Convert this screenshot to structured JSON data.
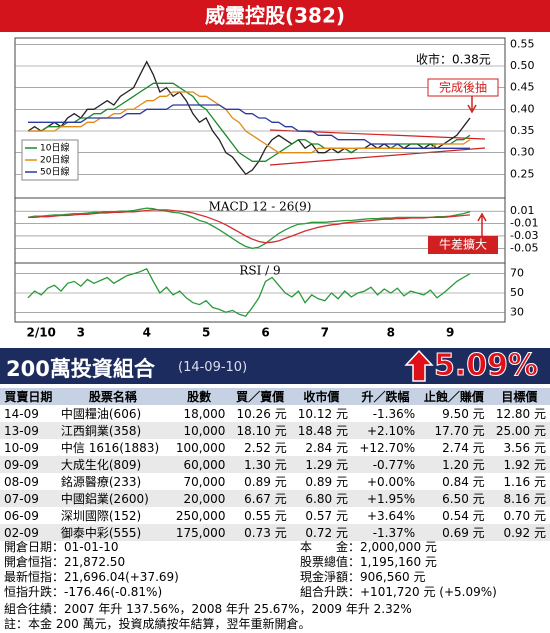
{
  "header": {
    "title": "威靈控股(382)"
  },
  "chart_data": [
    {
      "type": "line",
      "annotations": [
        "收市：0.38元",
        "完成後抽"
      ],
      "ylim": [
        0.2,
        0.56
      ],
      "yticks": [
        0.25,
        {
          "value": 0.3,
          "label": "0.30"
        },
        0.35,
        {
          "value": 0.4,
          "label": "0.40"
        },
        0.45,
        {
          "value": 0.5,
          "label": "0.50"
        },
        0.55
      ],
      "grid": true,
      "legend": "lower-left",
      "series": [
        {
          "color": "#222222",
          "values": [
            0.35,
            0.36,
            0.35,
            0.36,
            0.37,
            0.36,
            0.38,
            0.39,
            0.38,
            0.4,
            0.4,
            0.41,
            0.42,
            0.41,
            0.43,
            0.44,
            0.45,
            0.48,
            0.51,
            0.48,
            0.44,
            0.45,
            0.43,
            0.44,
            0.42,
            0.39,
            0.37,
            0.38,
            0.35,
            0.33,
            0.3,
            0.29,
            0.27,
            0.25,
            0.26,
            0.28,
            0.31,
            0.33,
            0.34,
            0.33,
            0.32,
            0.33,
            0.31,
            0.32,
            0.3,
            0.3,
            0.31,
            0.3,
            0.31,
            0.3,
            0.31,
            0.31,
            0.32,
            0.31,
            0.32,
            0.31,
            0.32,
            0.31,
            0.32,
            0.32,
            0.31,
            0.32,
            0.31,
            0.32,
            0.33,
            0.34,
            0.36,
            0.38
          ]
        },
        {
          "name": "10日線",
          "color": "#1a8a2a",
          "values": [
            0.35,
            0.35,
            0.35,
            0.36,
            0.36,
            0.36,
            0.37,
            0.37,
            0.38,
            0.38,
            0.39,
            0.39,
            0.4,
            0.4,
            0.41,
            0.42,
            0.43,
            0.44,
            0.45,
            0.46,
            0.46,
            0.46,
            0.46,
            0.45,
            0.44,
            0.43,
            0.41,
            0.4,
            0.38,
            0.36,
            0.34,
            0.32,
            0.3,
            0.29,
            0.28,
            0.28,
            0.28,
            0.29,
            0.3,
            0.31,
            0.32,
            0.33,
            0.33,
            0.32,
            0.32,
            0.31,
            0.31,
            0.31,
            0.31,
            0.3,
            0.31,
            0.31,
            0.31,
            0.31,
            0.31,
            0.31,
            0.32,
            0.32,
            0.32,
            0.32,
            0.32,
            0.32,
            0.32,
            0.32,
            0.32,
            0.33,
            0.33,
            0.34
          ]
        },
        {
          "name": "20日線",
          "color": "#e08a1a",
          "values": [
            0.35,
            0.35,
            0.35,
            0.35,
            0.35,
            0.36,
            0.36,
            0.36,
            0.36,
            0.37,
            0.37,
            0.38,
            0.38,
            0.39,
            0.39,
            0.4,
            0.4,
            0.41,
            0.42,
            0.42,
            0.43,
            0.43,
            0.44,
            0.44,
            0.44,
            0.44,
            0.43,
            0.43,
            0.42,
            0.41,
            0.4,
            0.38,
            0.37,
            0.35,
            0.34,
            0.33,
            0.32,
            0.31,
            0.3,
            0.3,
            0.3,
            0.3,
            0.3,
            0.3,
            0.31,
            0.31,
            0.31,
            0.31,
            0.31,
            0.31,
            0.31,
            0.31,
            0.31,
            0.31,
            0.31,
            0.31,
            0.31,
            0.31,
            0.31,
            0.31,
            0.31,
            0.31,
            0.32,
            0.32,
            0.32,
            0.32,
            0.32,
            0.33
          ]
        },
        {
          "name": "50日線",
          "color": "#2a3aa0",
          "values": [
            0.37,
            0.37,
            0.37,
            0.37,
            0.37,
            0.37,
            0.37,
            0.37,
            0.37,
            0.38,
            0.38,
            0.38,
            0.38,
            0.38,
            0.38,
            0.39,
            0.39,
            0.39,
            0.4,
            0.4,
            0.4,
            0.4,
            0.41,
            0.41,
            0.41,
            0.41,
            0.41,
            0.41,
            0.41,
            0.41,
            0.4,
            0.4,
            0.4,
            0.39,
            0.39,
            0.38,
            0.38,
            0.37,
            0.37,
            0.36,
            0.36,
            0.35,
            0.35,
            0.35,
            0.34,
            0.34,
            0.34,
            0.33,
            0.33,
            0.33,
            0.33,
            0.33,
            0.32,
            0.32,
            0.32,
            0.32,
            0.32,
            0.31,
            0.31,
            0.31,
            0.31,
            0.31,
            0.31,
            0.31,
            0.31,
            0.31,
            0.31,
            0.31
          ]
        }
      ]
    },
    {
      "type": "line",
      "title": "MACD 12 - 26(9)",
      "annotations": [
        "牛差擴大"
      ],
      "ylim": [
        -0.072,
        0.028
      ],
      "yticks": [
        0.01,
        -0.01,
        -0.03,
        -0.05
      ],
      "grid": true,
      "series": [
        {
          "color": "#2a9a3a",
          "values": [
            0.0,
            0.002,
            0.002,
            0.003,
            0.004,
            0.004,
            0.005,
            0.006,
            0.006,
            0.007,
            0.008,
            0.008,
            0.009,
            0.009,
            0.01,
            0.01,
            0.011,
            0.013,
            0.015,
            0.014,
            0.011,
            0.01,
            0.008,
            0.007,
            0.004,
            0.0,
            -0.005,
            -0.008,
            -0.014,
            -0.02,
            -0.027,
            -0.034,
            -0.041,
            -0.047,
            -0.05,
            -0.048,
            -0.042,
            -0.034,
            -0.026,
            -0.02,
            -0.015,
            -0.011,
            -0.01,
            -0.008,
            -0.008,
            -0.008,
            -0.007,
            -0.006,
            -0.005,
            -0.005,
            -0.004,
            -0.003,
            -0.002,
            -0.002,
            -0.001,
            -0.001,
            0.0,
            0.0,
            0.0,
            0.0,
            0.0,
            0.0,
            0.001,
            0.001,
            0.002,
            0.004,
            0.006,
            0.009
          ]
        },
        {
          "color": "#d03030",
          "values": [
            0.0,
            0.0,
            0.001,
            0.001,
            0.002,
            0.003,
            0.003,
            0.004,
            0.005,
            0.005,
            0.006,
            0.007,
            0.007,
            0.008,
            0.008,
            0.009,
            0.009,
            0.01,
            0.011,
            0.012,
            0.012,
            0.012,
            0.011,
            0.01,
            0.009,
            0.007,
            0.004,
            0.001,
            -0.003,
            -0.007,
            -0.012,
            -0.018,
            -0.024,
            -0.03,
            -0.035,
            -0.039,
            -0.041,
            -0.04,
            -0.038,
            -0.034,
            -0.03,
            -0.026,
            -0.022,
            -0.019,
            -0.016,
            -0.014,
            -0.012,
            -0.011,
            -0.009,
            -0.008,
            -0.007,
            -0.006,
            -0.005,
            -0.004,
            -0.003,
            -0.003,
            -0.002,
            -0.002,
            -0.001,
            -0.001,
            -0.001,
            0.0,
            0.0,
            0.0,
            0.001,
            0.002,
            0.003,
            0.004
          ]
        }
      ]
    },
    {
      "type": "line",
      "title": "RSI / 9",
      "ylim": [
        20,
        80
      ],
      "yticks": [
        70,
        50,
        30
      ],
      "grid": true,
      "categories": [
        null,
        null,
        "2/10",
        null,
        null,
        null,
        null,
        null,
        "3",
        null,
        null,
        null,
        null,
        null,
        null,
        null,
        null,
        null,
        "4",
        null,
        null,
        null,
        null,
        null,
        null,
        null,
        null,
        "5",
        null,
        null,
        null,
        null,
        null,
        null,
        null,
        null,
        "6",
        null,
        null,
        null,
        null,
        null,
        null,
        null,
        null,
        "7",
        null,
        null,
        null,
        null,
        null,
        null,
        null,
        null,
        null,
        "8",
        null,
        null,
        null,
        null,
        null,
        null,
        null,
        null,
        "9",
        null,
        null,
        null
      ],
      "series": [
        {
          "color": "#2a9a3a",
          "values": [
            45,
            52,
            48,
            55,
            58,
            52,
            60,
            62,
            57,
            64,
            60,
            63,
            66,
            60,
            64,
            68,
            70,
            72,
            75,
            62,
            50,
            56,
            48,
            52,
            45,
            40,
            38,
            42,
            35,
            33,
            30,
            32,
            28,
            26,
            35,
            45,
            62,
            66,
            58,
            50,
            46,
            52,
            40,
            48,
            44,
            42,
            50,
            44,
            52,
            46,
            50,
            52,
            56,
            48,
            54,
            50,
            55,
            47,
            52,
            50,
            48,
            53,
            45,
            50,
            56,
            62,
            66,
            70
          ]
        }
      ]
    }
  ],
  "portfolio": {
    "title": "200萬投資組合",
    "date": "(14-09-10)",
    "change": "5.09%",
    "table": {
      "columns": [
        "買賣日期",
        "股票名稱",
        "股數",
        "買／賣價",
        "收市價",
        "升／跌幅",
        "止蝕／賺價",
        "目標價"
      ],
      "rows": [
        [
          "14-09",
          "中國糧油(606)",
          "18,000",
          "10.26 元",
          "10.12 元",
          "-1.36%",
          "9.50 元",
          "12.80 元"
        ],
        [
          "13-09",
          "江西銅業(358)",
          "10,000",
          "18.10 元",
          "18.48 元",
          "+2.10%",
          "17.70 元",
          "25.00 元"
        ],
        [
          "10-09",
          "中信 1616(1883)",
          "100,000",
          "2.52 元",
          "2.84 元",
          "+12.70%",
          "2.74 元",
          "3.56 元"
        ],
        [
          "09-09",
          "大成生化(809)",
          "60,000",
          "1.30 元",
          "1.29 元",
          "-0.77%",
          "1.20 元",
          "1.92 元"
        ],
        [
          "08-09",
          "銘源醫療(233)",
          "70,000",
          "0.89 元",
          "0.89 元",
          "+0.00%",
          "0.84 元",
          "1.16 元"
        ],
        [
          "07-09",
          "中國鋁業(2600)",
          "20,000",
          "6.67 元",
          "6.80 元",
          "+1.95%",
          "6.50 元",
          "8.16 元"
        ],
        [
          "06-09",
          "深圳國際(152)",
          "250,000",
          "0.55 元",
          "0.57 元",
          "+3.64%",
          "0.54 元",
          "0.70 元"
        ],
        [
          "02-09",
          "御泰中彩(555)",
          "175,000",
          "0.73 元",
          "0.72 元",
          "-1.37%",
          "0.69 元",
          "0.92 元"
        ]
      ]
    },
    "summary": {
      "left": [
        "開倉日期：01-01-10",
        "開倉恒指：21,872.50",
        "最新恒指：21,696.04(+37.69)",
        "恒指升跌：-176.46(-0.81%)"
      ],
      "right": [
        "本　　金：2,000,000 元",
        "股票總值：1,195,160 元",
        "現金淨額：906,560 元",
        "組合升跌：+101,720 元 (+5.09%)"
      ]
    },
    "history": "組合往績：2007 年升 137.56%，2008 年升 25.67%，2009 年升 2.32%",
    "note": "註：本金 200 萬元，投資成績按年結算，翌年重新開倉。"
  }
}
